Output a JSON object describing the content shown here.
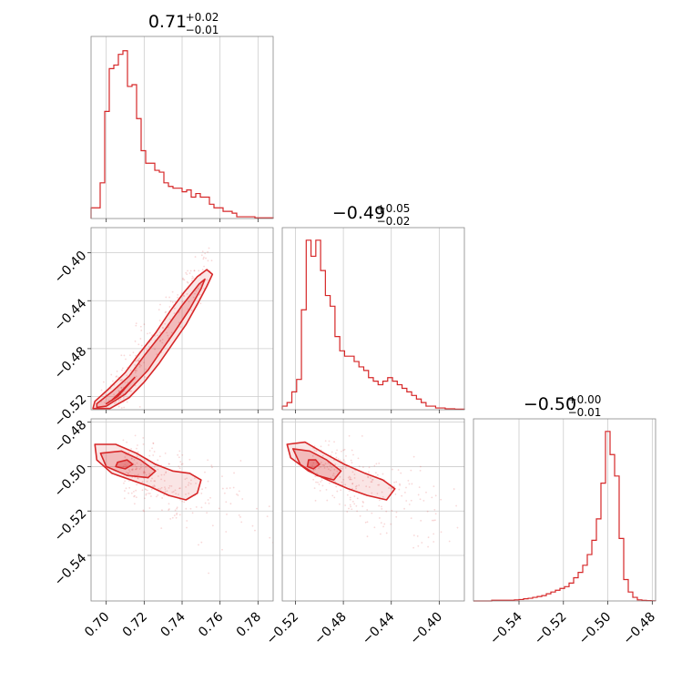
{
  "chart_data": {
    "type": "corner",
    "color": "#d62728",
    "grid": true,
    "parameters": [
      {
        "title_value": "0.71",
        "title_plus": "+0.02",
        "title_minus": "−0.01",
        "range": [
          0.692,
          0.788
        ],
        "ticks": [
          0.7,
          0.72,
          0.74,
          0.76,
          0.78
        ],
        "tick_labels": [
          "0.70",
          "0.72",
          "0.74",
          "0.76",
          "0.78"
        ],
        "hist": {
          "edges_start": 0.692,
          "edges_end": 0.788,
          "counts": [
            0.06,
            0.06,
            0.2,
            0.6,
            0.84,
            0.86,
            0.92,
            0.94,
            0.74,
            0.75,
            0.56,
            0.38,
            0.31,
            0.31,
            0.27,
            0.26,
            0.2,
            0.18,
            0.17,
            0.17,
            0.15,
            0.16,
            0.12,
            0.14,
            0.12,
            0.12,
            0.08,
            0.06,
            0.06,
            0.04,
            0.04,
            0.03,
            0.01,
            0.01,
            0.01,
            0.01,
            0.004,
            0.004,
            0.004,
            0.004
          ]
        }
      },
      {
        "title_value": "−0.49",
        "title_plus": "+0.05",
        "title_minus": "−0.02",
        "range": [
          -0.531,
          -0.379
        ],
        "ticks": [
          -0.52,
          -0.48,
          -0.44,
          -0.4
        ],
        "tick_labels": [
          "−0.52",
          "−0.48",
          "−0.44",
          "−0.40"
        ],
        "hist": {
          "edges_start": -0.531,
          "edges_end": -0.379,
          "counts": [
            0.02,
            0.04,
            0.1,
            0.17,
            0.56,
            0.95,
            0.86,
            0.95,
            0.78,
            0.64,
            0.58,
            0.41,
            0.33,
            0.3,
            0.3,
            0.27,
            0.24,
            0.22,
            0.18,
            0.16,
            0.14,
            0.16,
            0.18,
            0.16,
            0.14,
            0.12,
            0.1,
            0.08,
            0.06,
            0.04,
            0.02,
            0.02,
            0.01,
            0.01,
            0.005,
            0.005,
            0.003,
            0.003
          ]
        }
      },
      {
        "title_value": "−0.50",
        "title_plus": "+0.00",
        "title_minus": "−0.01",
        "range": [
          -0.5605,
          -0.4785
        ],
        "ticks": [
          -0.54,
          -0.52,
          -0.5,
          -0.48
        ],
        "tick_labels": [
          "−0.54",
          "−0.52",
          "−0.50",
          "−0.48"
        ],
        "hist": {
          "edges_start": -0.5605,
          "edges_end": -0.4785,
          "counts": [
            0,
            0,
            0,
            0,
            0.004,
            0.004,
            0.004,
            0.004,
            0.004,
            0.006,
            0.008,
            0.012,
            0.015,
            0.02,
            0.025,
            0.03,
            0.04,
            0.05,
            0.06,
            0.07,
            0.08,
            0.1,
            0.13,
            0.16,
            0.2,
            0.26,
            0.34,
            0.46,
            0.66,
            0.95,
            0.82,
            0.7,
            0.35,
            0.12,
            0.05,
            0.02,
            0.006,
            0.003,
            0.002,
            0.001
          ]
        }
      }
    ],
    "pairs": [
      {
        "row": 1,
        "col": 0,
        "kind": "line",
        "center": [
          0.703,
          -0.524
        ],
        "end": [
          0.755,
          -0.405
        ],
        "width_frac": 0.06,
        "contours": [
          [
            [
              0.7,
              -0.526
            ],
            [
              0.706,
              -0.52
            ],
            [
              0.714,
              -0.506
            ],
            [
              0.715,
              -0.504
            ],
            [
              0.709,
              -0.514
            ],
            [
              0.703,
              -0.523
            ]
          ],
          [
            [
              0.695,
              -0.529
            ],
            [
              0.7,
              -0.528
            ],
            [
              0.71,
              -0.518
            ],
            [
              0.722,
              -0.498
            ],
            [
              0.728,
              -0.484
            ],
            [
              0.736,
              -0.466
            ],
            [
              0.744,
              -0.447
            ],
            [
              0.75,
              -0.43
            ],
            [
              0.752,
              -0.422
            ],
            [
              0.749,
              -0.426
            ],
            [
              0.74,
              -0.444
            ],
            [
              0.731,
              -0.464
            ],
            [
              0.72,
              -0.486
            ],
            [
              0.712,
              -0.503
            ],
            [
              0.703,
              -0.516
            ],
            [
              0.695,
              -0.526
            ]
          ],
          [
            [
              0.693,
              -0.53
            ],
            [
              0.702,
              -0.53
            ],
            [
              0.712,
              -0.521
            ],
            [
              0.72,
              -0.508
            ],
            [
              0.728,
              -0.492
            ],
            [
              0.735,
              -0.476
            ],
            [
              0.742,
              -0.46
            ],
            [
              0.748,
              -0.443
            ],
            [
              0.753,
              -0.428
            ],
            [
              0.756,
              -0.418
            ],
            [
              0.753,
              -0.414
            ],
            [
              0.748,
              -0.42
            ],
            [
              0.741,
              -0.433
            ],
            [
              0.734,
              -0.448
            ],
            [
              0.726,
              -0.467
            ],
            [
              0.717,
              -0.485
            ],
            [
              0.71,
              -0.5
            ],
            [
              0.701,
              -0.514
            ],
            [
              0.694,
              -0.524
            ]
          ]
        ]
      },
      {
        "row": 2,
        "col": 0,
        "kind": "blob",
        "center": [
          0.709,
          -0.499
        ],
        "spread": [
          0.03,
          0.014
        ],
        "contours": [
          [
            [
              0.706,
              -0.498
            ],
            [
              0.711,
              -0.497
            ],
            [
              0.714,
              -0.499
            ],
            [
              0.71,
              -0.501
            ],
            [
              0.705,
              -0.5
            ]
          ],
          [
            [
              0.697,
              -0.494
            ],
            [
              0.708,
              -0.493
            ],
            [
              0.718,
              -0.497
            ],
            [
              0.726,
              -0.502
            ],
            [
              0.722,
              -0.505
            ],
            [
              0.711,
              -0.504
            ],
            [
              0.7,
              -0.5
            ]
          ],
          [
            [
              0.694,
              -0.49
            ],
            [
              0.705,
              -0.49
            ],
            [
              0.716,
              -0.494
            ],
            [
              0.726,
              -0.499
            ],
            [
              0.735,
              -0.502
            ],
            [
              0.744,
              -0.503
            ],
            [
              0.75,
              -0.506
            ],
            [
              0.748,
              -0.512
            ],
            [
              0.742,
              -0.515
            ],
            [
              0.733,
              -0.513
            ],
            [
              0.723,
              -0.509
            ],
            [
              0.713,
              -0.506
            ],
            [
              0.703,
              -0.503
            ],
            [
              0.695,
              -0.497
            ]
          ]
        ]
      },
      {
        "row": 2,
        "col": 1,
        "kind": "blob",
        "center": [
          -0.506,
          -0.499
        ],
        "spread": [
          0.05,
          0.014
        ],
        "contours": [
          [
            [
              -0.509,
              -0.497
            ],
            [
              -0.503,
              -0.497
            ],
            [
              -0.5,
              -0.499
            ],
            [
              -0.505,
              -0.501
            ],
            [
              -0.51,
              -0.5
            ]
          ],
          [
            [
              -0.522,
              -0.492
            ],
            [
              -0.508,
              -0.493
            ],
            [
              -0.494,
              -0.497
            ],
            [
              -0.482,
              -0.502
            ],
            [
              -0.488,
              -0.506
            ],
            [
              -0.502,
              -0.504
            ],
            [
              -0.516,
              -0.499
            ]
          ],
          [
            [
              -0.527,
              -0.49
            ],
            [
              -0.512,
              -0.489
            ],
            [
              -0.496,
              -0.494
            ],
            [
              -0.479,
              -0.499
            ],
            [
              -0.462,
              -0.503
            ],
            [
              -0.447,
              -0.506
            ],
            [
              -0.437,
              -0.51
            ],
            [
              -0.444,
              -0.515
            ],
            [
              -0.46,
              -0.513
            ],
            [
              -0.476,
              -0.51
            ],
            [
              -0.493,
              -0.506
            ],
            [
              -0.509,
              -0.502
            ],
            [
              -0.524,
              -0.496
            ]
          ]
        ]
      }
    ]
  }
}
